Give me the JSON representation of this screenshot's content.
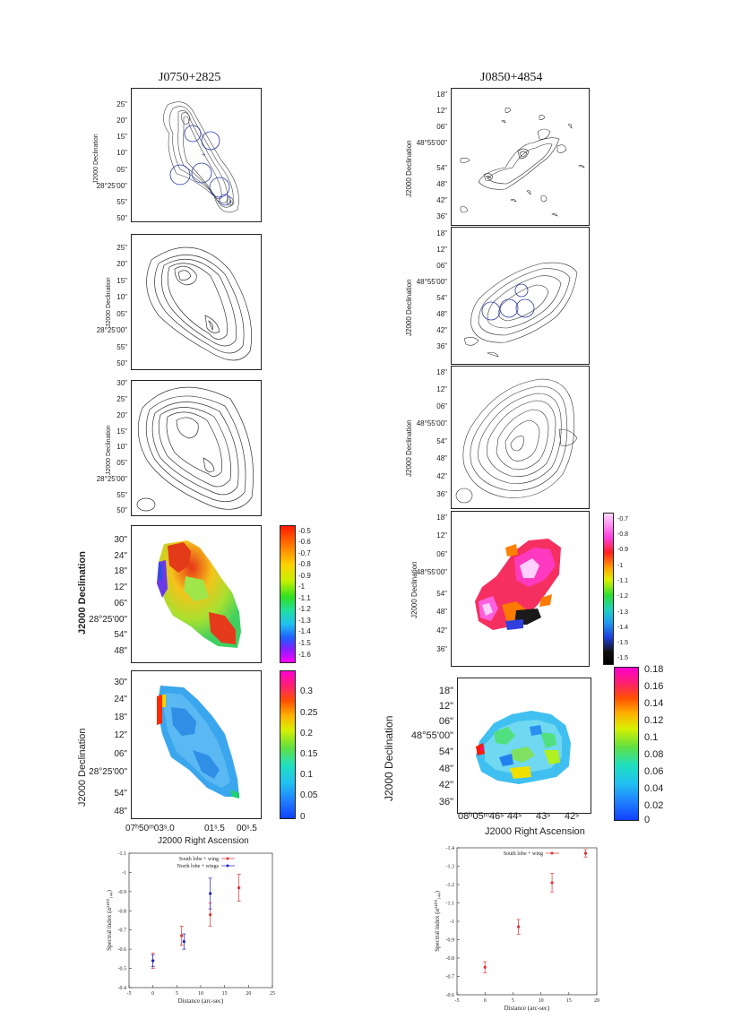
{
  "left": {
    "title": "J0750+2825",
    "dec_label": "J2000 Declination",
    "ra_label": "J2000 Right Ascension",
    "p1_ticks": [
      "25\"",
      "20\"",
      "15\"",
      "10\"",
      "05\"",
      "28°25'00\"",
      "55\"",
      "50\""
    ],
    "p2_ticks": [
      "25\"",
      "20\"",
      "15\"",
      "10\"",
      "05\"",
      "28°25'00\"",
      "55\"",
      "50\""
    ],
    "p3_ticks": [
      "30\"",
      "25\"",
      "20\"",
      "15\"",
      "10\"",
      "05\"",
      "28°25'00\"",
      "55\"",
      "50\""
    ],
    "p4_ticks": [
      "30\"",
      "24\"",
      "18\"",
      "12\"",
      "06\"",
      "28°25'00\"",
      "54\"",
      "48\""
    ],
    "p5_ticks": [
      "30\"",
      "24\"",
      "18\"",
      "12\"",
      "06\"",
      "28°25'00\"",
      "54\"",
      "48\""
    ],
    "cb1_ticks": [
      "-0.5",
      "-0.6",
      "-0.7",
      "-0.8",
      "-0.9",
      "-1",
      "-1.1",
      "-1.2",
      "-1.3",
      "-1.4",
      "-1.5",
      "-1.6"
    ],
    "cb2_ticks": [
      "0.3",
      "0.25",
      "0.2",
      "0.15",
      "0.1",
      "0.05",
      "0"
    ],
    "ra_ticks": [
      "07ʰ50ᵐ03ˢ.0",
      "01ˢ.5",
      "00ˢ.5"
    ]
  },
  "right": {
    "title": "J0850+4854",
    "dec_label": "J2000 Declination",
    "ra_label": "J2000 Right Ascension",
    "p1_ticks": [
      "18\"",
      "12\"",
      "06\"",
      "48°55'00\"",
      "54\"",
      "48\"",
      "42\"",
      "36\""
    ],
    "p2_ticks": [
      "18\"",
      "12\"",
      "06\"",
      "48°55'00\"",
      "54\"",
      "48\"",
      "42\"",
      "36\""
    ],
    "p3_ticks": [
      "18\"",
      "12\"",
      "06\"",
      "48°55'00\"",
      "54\"",
      "48\"",
      "42\"",
      "36\""
    ],
    "p4_ticks": [
      "18\"",
      "12\"",
      "06\"",
      "48°55'00\"",
      "54\"",
      "48\"",
      "42\"",
      "36\""
    ],
    "p5_ticks": [
      "18\"",
      "12\"",
      "06\"",
      "48°55'00\"",
      "54\"",
      "48\"",
      "42\"",
      "36\""
    ],
    "cb1_ticks": [
      "-0.7",
      "-0.8",
      "-0.9",
      "-1",
      "-1.1",
      "-1.2",
      "-1.3",
      "-1.4",
      "-1.5",
      "-1.5"
    ],
    "cb2_ticks": [
      "0.18",
      "0.16",
      "0.14",
      "0.12",
      "0.1",
      "0.08",
      "0.06",
      "0.04",
      "0.02",
      "0"
    ],
    "ra_ticks": [
      "08ʰ05ᵐ46ˢ",
      "44ˢ",
      "43ˢ",
      "42ˢ"
    ]
  },
  "left_plot": {
    "xlabel": "Distance (arc-sec)",
    "ylabel": "Spectral index (α¹⁴⁰⁰₁₄₄)",
    "legend": [
      "South lobe + wing",
      "North lobe + wings"
    ],
    "xticks": [
      "-5",
      "0",
      "5",
      "10",
      "15",
      "20",
      "25"
    ],
    "yticks": [
      "-1.1",
      "-1",
      "-0.9",
      "-0.8",
      "-0.7",
      "-0.6",
      "-0.5",
      "-0.4"
    ],
    "colors": {
      "south": "#e23030",
      "north": "#2020c0"
    }
  },
  "right_plot": {
    "xlabel": "Distance (arc-sec)",
    "ylabel": "Spectral index (α¹⁴⁰⁰₁₄₄)",
    "legend": [
      "South lobe + wing"
    ],
    "xticks": [
      "-5",
      "0",
      "5",
      "10",
      "15",
      "20"
    ],
    "yticks": [
      "-1.4",
      "-1.3",
      "-1.2",
      "-1.1",
      "-1",
      "-0.9",
      "-0.8",
      "-0.7",
      "-0.6"
    ],
    "colors": {
      "south": "#e23030"
    }
  },
  "chart_data": [
    {
      "type": "scatter",
      "xlabel": "Distance (arc-sec)",
      "ylabel": "Spectral index (α¹⁴⁰⁰₁₄₄)",
      "xlim": [
        -5,
        25
      ],
      "ylim": [
        -0.4,
        -1.1
      ],
      "series": [
        {
          "name": "South lobe + wing",
          "x": [
            0,
            6,
            12,
            18
          ],
          "y": [
            -0.54,
            -0.67,
            -0.78,
            -0.92
          ],
          "yerr": [
            0.04,
            0.05,
            0.06,
            0.07
          ]
        },
        {
          "name": "North lobe + wings",
          "x": [
            0,
            6.5,
            12
          ],
          "y": [
            -0.54,
            -0.64,
            -0.89
          ],
          "yerr": [
            0.03,
            0.04,
            0.08
          ]
        }
      ]
    },
    {
      "type": "scatter",
      "xlabel": "Distance (arc-sec)",
      "ylabel": "Spectral index (α¹⁴⁰⁰₁₄₄)",
      "xlim": [
        -5,
        20
      ],
      "ylim": [
        -0.6,
        -1.4
      ],
      "series": [
        {
          "name": "South lobe + wing",
          "x": [
            0,
            6,
            12,
            18
          ],
          "y": [
            -0.75,
            -0.97,
            -1.21,
            -1.37
          ],
          "yerr": [
            0.03,
            0.04,
            0.05,
            0.02
          ]
        }
      ]
    }
  ]
}
